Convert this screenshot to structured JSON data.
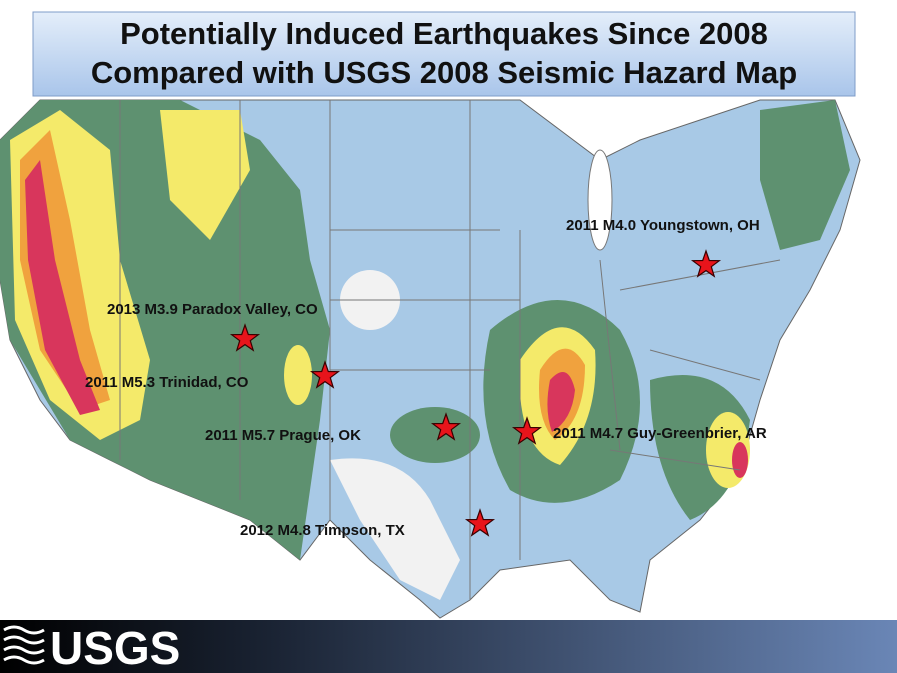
{
  "title": {
    "line1": "Potentially Induced Earthquakes Since 2008",
    "line2": "Compared with USGS 2008 Seismic Hazard Map"
  },
  "events": [
    {
      "label": "2011 M4.0 Youngstown, OH"
    },
    {
      "label": "2013 M3.9 Paradox Valley, CO"
    },
    {
      "label": "2011 M5.3 Trinidad, CO"
    },
    {
      "label": "2011 M5.7 Prague, OK"
    },
    {
      "label": "2011 M4.7 Guy-Greenbrier, AR"
    },
    {
      "label": "2012 M4.8 Timpson, TX"
    }
  ],
  "footer": {
    "logo": "USGS"
  }
}
